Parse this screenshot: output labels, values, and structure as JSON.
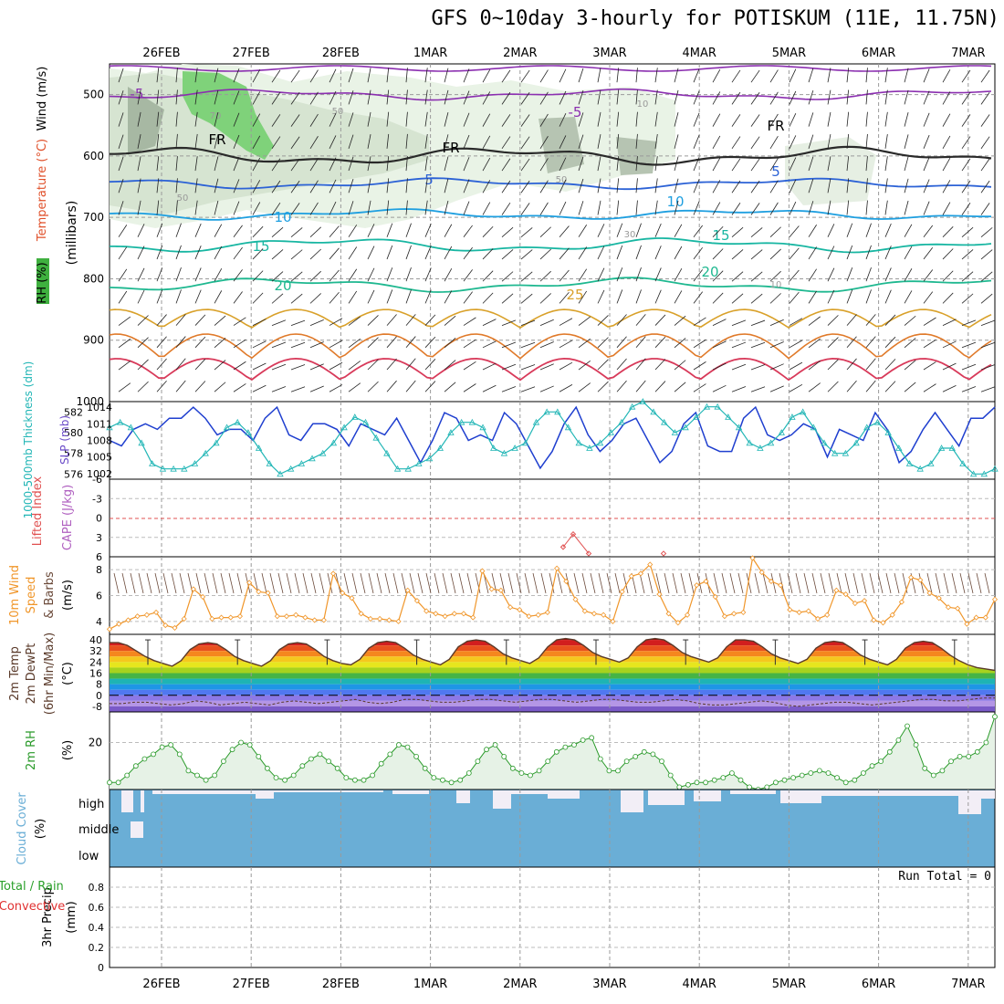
{
  "title": "GFS 0~10day 3-hourly for POTISKUM (11E, 11.75N)",
  "dates": [
    "26FEB",
    "27FEB",
    "28FEB",
    "1MAR",
    "2MAR",
    "3MAR",
    "4MAR",
    "5MAR",
    "6MAR",
    "7MAR"
  ],
  "panels": {
    "upper": {
      "label_wind": "Wind (m/s)",
      "label_temp": "Temperature (°C)",
      "label_rh": "RH (%)",
      "label_unit": "(millibars)",
      "pressure_ticks": [
        500,
        600,
        700,
        800,
        900,
        1000
      ],
      "contour_labels": [
        "-5",
        "-5",
        "FR",
        "FR",
        "FR",
        "5",
        "5",
        "10",
        "10",
        "15",
        "15",
        "20",
        "20",
        "25",
        "70",
        "50",
        "50",
        "50",
        "30",
        "10",
        "10"
      ]
    },
    "thickness": {
      "label_thk": "1000-500mb Thickness (dm)",
      "label_slp": "SLP (mb)",
      "left_ticks": [
        582,
        580,
        578,
        576
      ],
      "right_ticks": [
        1014,
        1011,
        1008,
        1005,
        1002
      ]
    },
    "stability": {
      "label_li": "Lifted Index",
      "label_cape": "CAPE (J/kg)",
      "ticks": [
        "-6",
        "-3",
        "0",
        "3",
        "6"
      ]
    },
    "wind10m": {
      "label": "10m Wind",
      "label2": "Speed",
      "label3": "& Barbs",
      "label_unit": "(m/s)",
      "ticks": [
        8,
        6,
        4
      ]
    },
    "temp2m": {
      "label1": "2m Temp",
      "label2": "2m DewPt",
      "label3": "(6hr Min/Max)",
      "label_unit": "(°C)",
      "ticks": [
        "40",
        "32",
        "24",
        "16",
        "8",
        "0",
        "-8"
      ]
    },
    "rh2m": {
      "label": "2m RH",
      "label_unit": "(%)",
      "ticks": [
        20
      ]
    },
    "cloud": {
      "label": "Cloud Cover",
      "label_unit": "(%)",
      "levels": [
        "high",
        "middle",
        "low"
      ]
    },
    "precip": {
      "label1": "3hr Precip",
      "label_unit": "(mm)",
      "label_total": "Total / Rain",
      "label_conv": "Convective",
      "run_total": "Run Total = 0",
      "ticks": [
        "0.8",
        "0.6",
        "0.4",
        "0.2",
        "0"
      ]
    }
  },
  "colors": {
    "slp": "#1f3fcf",
    "thickness": "#22b6b6",
    "wind_speed": "#f0962a",
    "rh_fill": "#e6f2e6",
    "rh_line": "#2a9a2a",
    "cloud": "#6aaed6",
    "cloud_gap": "#f2eef6",
    "cape_zero": "#e05050"
  },
  "chart_data": [
    {
      "type": "line",
      "name": "sea level pressure",
      "unit": "mb",
      "ylim": [
        1002,
        1014
      ],
      "values": [
        1008,
        1007,
        1010,
        1011,
        1010,
        1012,
        1012,
        1014,
        1012,
        1009,
        1010,
        1010,
        1008,
        1012,
        1014,
        1009,
        1008,
        1011,
        1011,
        1010,
        1007,
        1011,
        1010,
        1009,
        1012,
        1008,
        1004,
        1008,
        1013,
        1012,
        1008,
        1009,
        1008,
        1013,
        1011,
        1007,
        1003,
        1006,
        1011,
        1014,
        1009,
        1006,
        1008,
        1011,
        1012,
        1008,
        1004,
        1006,
        1011,
        1013,
        1007,
        1006,
        1006,
        1012,
        1014,
        1009,
        1008,
        1009,
        1011,
        1010,
        1005,
        1010,
        1009,
        1008,
        1013,
        1010,
        1004,
        1006,
        1010,
        1013,
        1010,
        1007,
        1012,
        1012,
        1014
      ],
      "range": "25FEB 12Z to 7MAR 06Z, 3-hourly"
    },
    {
      "type": "line",
      "name": "1000-500mb thickness",
      "unit": "dm",
      "ylim": [
        575.5,
        583
      ],
      "values": [
        580.5,
        581,
        580.5,
        579,
        577,
        576.5,
        576.5,
        576.5,
        577,
        578,
        579,
        580.5,
        581,
        580,
        578.5,
        577,
        576,
        576.5,
        577,
        577.5,
        578,
        579,
        580.5,
        581.5,
        581,
        579.5,
        578,
        576.5,
        576.5,
        577,
        577.5,
        578.5,
        580,
        581,
        581,
        580.5,
        578.5,
        578,
        578.5,
        579,
        581,
        582,
        582,
        580.5,
        579,
        578.5,
        579,
        580,
        581,
        582.5,
        583,
        582,
        581,
        580,
        580.5,
        581.5,
        582.5,
        582.5,
        581.5,
        580.5,
        579,
        578.5,
        579,
        580,
        581.5,
        582,
        580.5,
        579,
        578,
        578,
        579,
        580.5,
        581,
        580,
        578.5,
        577,
        576.5,
        577,
        578.5,
        578.5,
        577,
        576,
        576,
        576.5
      ],
      "range": "25FEB 12Z to 7MAR 06Z, 3-hourly"
    },
    {
      "type": "line",
      "name": "10m wind speed",
      "unit": "m/s",
      "ylim": [
        3,
        9
      ],
      "values": [
        3.4,
        3.8,
        4.1,
        4.4,
        4.5,
        4.7,
        3.7,
        3.5,
        4.2,
        6.5,
        5.9,
        4.2,
        4.3,
        4.3,
        4.4,
        7,
        6.3,
        6.2,
        4.4,
        4.4,
        4.5,
        4.3,
        4.1,
        4.1,
        7.7,
        6.2,
        5.8,
        4.6,
        4.2,
        4.2,
        4.1,
        4,
        6.4,
        5.6,
        4.8,
        4.6,
        4.4,
        4.6,
        4.6,
        4.3,
        7.9,
        6.5,
        6.4,
        5.1,
        4.9,
        4.4,
        4.5,
        4.7,
        8.1,
        7.1,
        5.7,
        4.8,
        4.6,
        4.5,
        4,
        6.3,
        7.5,
        7.7,
        8.4,
        6.1,
        4.6,
        3.9,
        4.5,
        6.8,
        7.1,
        5.9,
        4.4,
        4.6,
        4.7,
        8.9,
        7.8,
        7.1,
        6.8,
        4.9,
        4.7,
        4.8,
        4.2,
        4.5,
        6.4,
        6.1,
        5.4,
        5.6,
        4.1,
        3.9,
        4.5,
        5.5,
        7.4,
        7.2,
        6.2,
        5.8,
        5.1,
        5,
        3.8,
        4.3,
        4.3,
        5.7
      ],
      "range": "25FEB 12Z to 7MAR 06Z, 3-hourly"
    },
    {
      "type": "line",
      "name": "2m relative humidity",
      "unit": "%",
      "values": [
        3,
        3,
        6,
        10,
        13,
        15,
        18,
        19,
        15,
        8,
        6,
        4,
        6,
        12,
        17,
        20,
        19,
        14,
        9,
        5,
        4,
        6,
        10,
        13,
        15,
        12,
        9,
        5,
        4,
        4,
        6,
        11,
        15,
        19,
        18,
        14,
        9,
        5,
        4,
        3,
        4,
        7,
        12,
        17,
        19,
        14,
        9,
        7,
        6,
        8,
        12,
        16,
        18,
        19,
        21,
        22,
        13,
        8,
        8,
        12,
        14,
        16,
        15,
        12,
        6,
        1,
        2,
        3,
        3,
        4,
        5,
        7,
        4,
        1,
        0,
        1,
        3,
        4,
        5,
        6,
        7,
        8,
        7,
        5,
        3,
        4,
        7,
        10,
        12,
        16,
        21,
        27,
        19,
        9,
        6,
        8,
        12,
        14,
        14,
        16,
        20,
        31
      ],
      "range": "25FEB 12Z to 7MAR 06Z, 3-hourly"
    },
    {
      "type": "line",
      "name": "2m temperature",
      "unit": "°C",
      "ylim": [
        -12,
        44
      ],
      "values": [
        38,
        38,
        36,
        32,
        28,
        25,
        23,
        21,
        25,
        33,
        37,
        38,
        37,
        33,
        28,
        25,
        23,
        21,
        25,
        33,
        37,
        38,
        37,
        33,
        28,
        25,
        23,
        22,
        26,
        34,
        38,
        39,
        38,
        34,
        29,
        26,
        24,
        22,
        26,
        35,
        39,
        40,
        39,
        35,
        30,
        27,
        25,
        23,
        27,
        35,
        40,
        41,
        40,
        36,
        31,
        28,
        26,
        24,
        27,
        35,
        40,
        41,
        40,
        36,
        31,
        28,
        26,
        24,
        27,
        35,
        40,
        40,
        39,
        35,
        30,
        27,
        25,
        23,
        26,
        34,
        38,
        39,
        38,
        34,
        29,
        26,
        24,
        22,
        26,
        34,
        38,
        39,
        38,
        34,
        29,
        25,
        22,
        20,
        19,
        18
      ]
    },
    {
      "type": "line",
      "name": "2m dewpoint",
      "unit": "°C",
      "values": [
        -6,
        -6,
        -5,
        -5,
        -6,
        -7,
        -6,
        -4,
        -5,
        -7,
        -6,
        -5,
        -6,
        -7,
        -5,
        -4,
        -5,
        -6,
        -5,
        -4,
        -3,
        -5,
        -6,
        -5,
        -3,
        -3,
        -4,
        -5,
        -5,
        -4,
        -3,
        -3,
        -4,
        -5,
        -4,
        -3,
        -3,
        -4,
        -5,
        -4,
        -3,
        -3,
        -4,
        -5,
        -5,
        -4,
        -3,
        -4,
        -6,
        -7,
        -7,
        -6,
        -5,
        -4,
        -5,
        -7,
        -8,
        -7,
        -6,
        -5,
        -5,
        -6,
        -7,
        -6,
        -5,
        -4,
        -3,
        -3,
        -4,
        -4,
        -3,
        -2,
        -2
      ]
    },
    {
      "type": "line",
      "name": "lifted index",
      "unit": "",
      "ylim": [
        -6,
        6
      ],
      "values": [
        {
          "x": "2MAR 21Z",
          "y": 4.5
        },
        {
          "x": "3MAR 00Z",
          "y": 2.5
        },
        {
          "x": "3MAR 03Z",
          "y": 5.5
        },
        {
          "x": "3MAR 21Z",
          "y": 5.5
        }
      ]
    },
    {
      "type": "bar",
      "name": "3hr precipitation",
      "unit": "mm",
      "ylim": [
        0,
        1
      ],
      "values": "all 0"
    }
  ]
}
